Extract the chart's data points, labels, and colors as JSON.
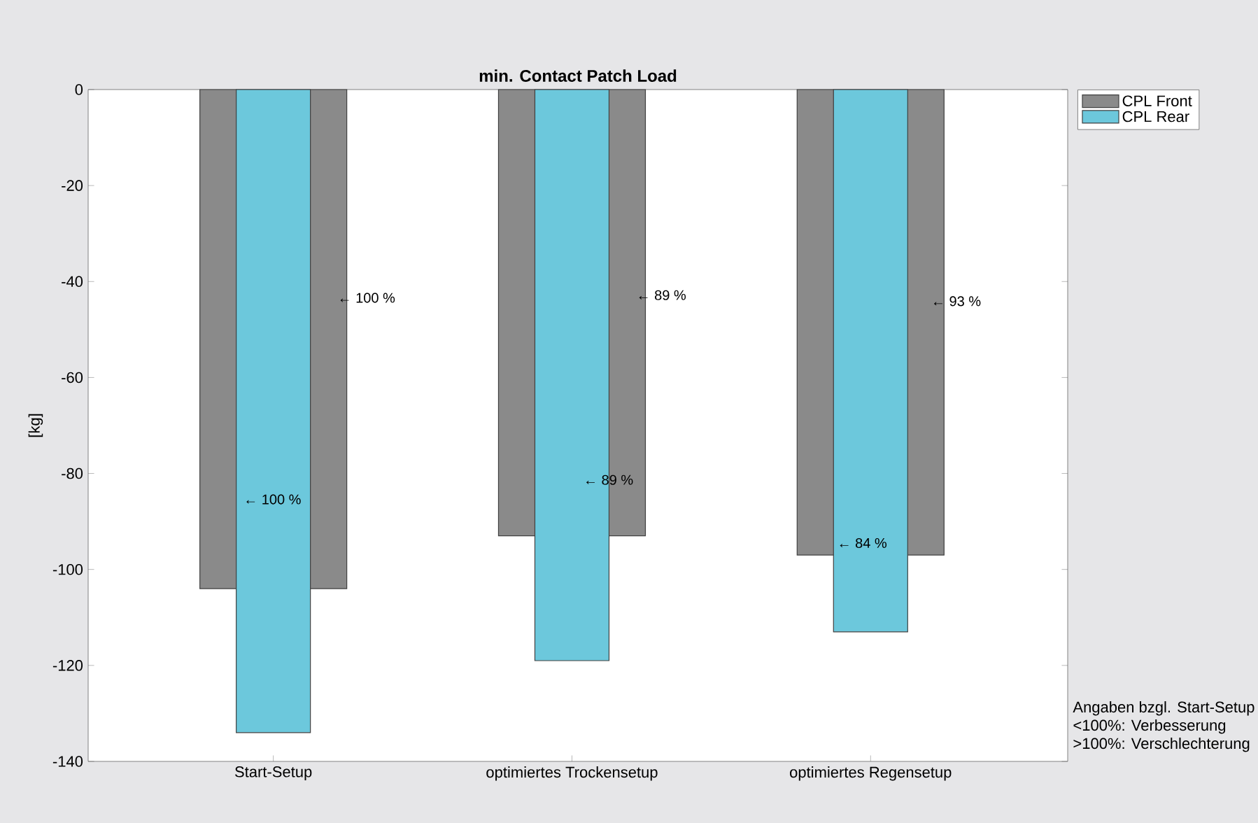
{
  "chart_data": {
    "type": "bar",
    "title": "min. Contact Patch Load",
    "ylabel": "[kg]",
    "categories": [
      "Start-Setup",
      "optimiertes Trockensetup",
      "optimiertes Regensetup"
    ],
    "series": [
      {
        "name": "CPL Front",
        "color": "#8a8a8a",
        "values": [
          -104,
          -93,
          -97
        ]
      },
      {
        "name": "CPL Rear",
        "color": "#6cc8dc",
        "values": [
          -134,
          -119,
          -113
        ]
      }
    ],
    "ylim": [
      -140,
      0
    ],
    "yticks": [
      -140,
      -120,
      -100,
      -80,
      -60,
      -40,
      -20,
      0
    ],
    "legend": "top right",
    "grid": false,
    "annotations": [
      "← 100 %",
      "← 100 %",
      "← 89 %",
      "← 89 %",
      "← 93 %",
      "← 84 %",
      "Angaben bzgl. Start-Setup",
      "<100%: Verbesserung",
      ">100%: Verschlechterung"
    ]
  }
}
